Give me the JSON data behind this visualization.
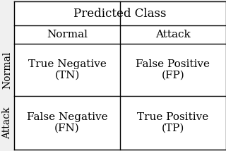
{
  "title": "Predicted Class",
  "col_headers": [
    "Normal",
    "Attack"
  ],
  "row_headers": [
    "Normal",
    "Attack"
  ],
  "cells": [
    [
      "True Negative\n(TN)",
      "False Positive\n(FP)"
    ],
    [
      "False Negative\n(FN)",
      "True Positive\n(TP)"
    ]
  ],
  "bg_color": "#f0f0f0",
  "table_bg": "#ffffff",
  "line_color": "#000000",
  "text_color": "#000000",
  "header_fontsize": 12,
  "col_header_fontsize": 11,
  "cell_fontsize": 11,
  "row_label_fontsize": 10
}
